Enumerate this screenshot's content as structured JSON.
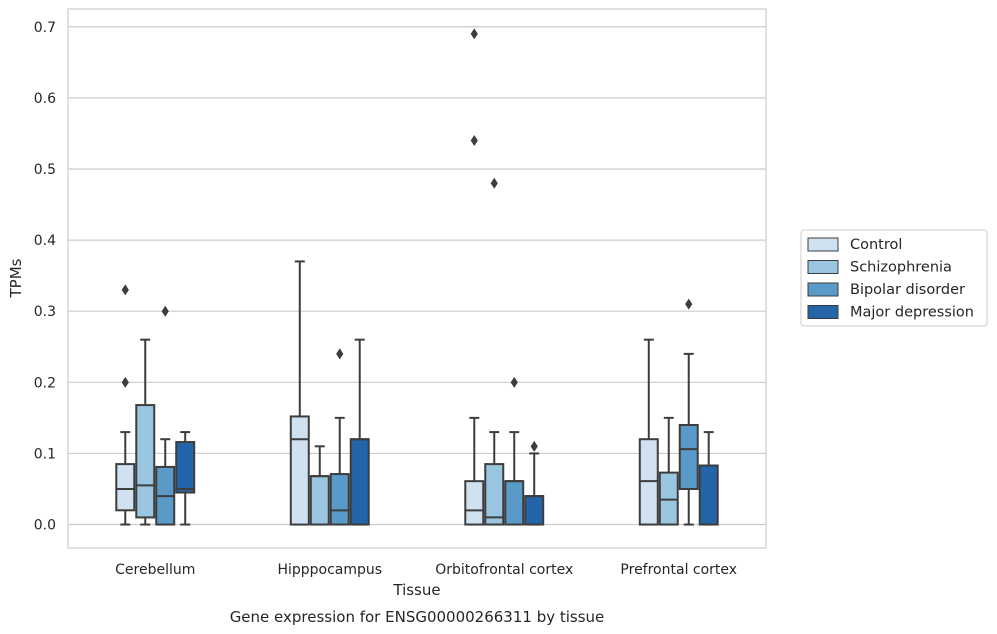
{
  "chart_data": {
    "type": "box",
    "title": "",
    "caption": "Gene expression for ENSG00000266311 by tissue",
    "xlabel": "Tissue",
    "ylabel": "TPMs",
    "ylim": [
      -0.033,
      0.725
    ],
    "yticks": [
      0.0,
      0.1,
      0.2,
      0.3,
      0.4,
      0.5,
      0.6,
      0.7
    ],
    "ytick_labels": [
      "0.0",
      "0.1",
      "0.2",
      "0.3",
      "0.4",
      "0.5",
      "0.6",
      "0.7"
    ],
    "grid": "horizontal",
    "legend_position": "right",
    "categories": [
      "Cerebellum",
      "Hipppocampus",
      "Orbitofrontal cortex",
      "Prefrontal cortex"
    ],
    "series": [
      {
        "name": "Control",
        "color": "#d0e1f2",
        "boxes": [
          {
            "whislo": 0.0,
            "q1": 0.02,
            "med": 0.05,
            "q3": 0.085,
            "whishi": 0.13,
            "fliers": [
              0.2,
              0.33
            ]
          },
          {
            "whislo": 0.0,
            "q1": 0.0,
            "med": 0.12,
            "q3": 0.152,
            "whishi": 0.37,
            "fliers": []
          },
          {
            "whislo": 0.0,
            "q1": 0.0,
            "med": 0.02,
            "q3": 0.061,
            "whishi": 0.15,
            "fliers": [
              0.54,
              0.69
            ]
          },
          {
            "whislo": 0.0,
            "q1": 0.0,
            "med": 0.061,
            "q3": 0.12,
            "whishi": 0.26,
            "fliers": []
          }
        ]
      },
      {
        "name": "Schizophrenia",
        "color": "#9ac5e0",
        "boxes": [
          {
            "whislo": 0.0,
            "q1": 0.01,
            "med": 0.055,
            "q3": 0.168,
            "whishi": 0.26,
            "fliers": []
          },
          {
            "whislo": 0.0,
            "q1": 0.0,
            "med": 0.068,
            "q3": 0.068,
            "whishi": 0.11,
            "fliers": []
          },
          {
            "whislo": 0.0,
            "q1": 0.0,
            "med": 0.01,
            "q3": 0.085,
            "whishi": 0.13,
            "fliers": [
              0.48
            ]
          },
          {
            "whislo": 0.0,
            "q1": 0.0,
            "med": 0.035,
            "q3": 0.073,
            "whishi": 0.15,
            "fliers": []
          }
        ]
      },
      {
        "name": "Bipolar disorder",
        "color": "#5a9ac8",
        "boxes": [
          {
            "whislo": 0.0,
            "q1": 0.0,
            "med": 0.04,
            "q3": 0.081,
            "whishi": 0.12,
            "fliers": [
              0.3
            ]
          },
          {
            "whislo": 0.0,
            "q1": 0.0,
            "med": 0.02,
            "q3": 0.071,
            "whishi": 0.15,
            "fliers": [
              0.24
            ]
          },
          {
            "whislo": 0.0,
            "q1": 0.0,
            "med": 0.061,
            "q3": 0.061,
            "whishi": 0.13,
            "fliers": [
              0.2
            ]
          },
          {
            "whislo": 0.0,
            "q1": 0.05,
            "med": 0.106,
            "q3": 0.14,
            "whishi": 0.24,
            "fliers": [
              0.31
            ]
          }
        ]
      },
      {
        "name": "Major depression",
        "color": "#2464a8",
        "boxes": [
          {
            "whislo": 0.0,
            "q1": 0.045,
            "med": 0.05,
            "q3": 0.116,
            "whishi": 0.13,
            "fliers": []
          },
          {
            "whislo": 0.0,
            "q1": 0.0,
            "med": 0.12,
            "q3": 0.12,
            "whishi": 0.26,
            "fliers": []
          },
          {
            "whislo": 0.0,
            "q1": 0.0,
            "med": 0.04,
            "q3": 0.04,
            "whishi": 0.1,
            "fliers": [
              0.11
            ]
          },
          {
            "whislo": 0.0,
            "q1": 0.0,
            "med": 0.083,
            "q3": 0.083,
            "whishi": 0.13,
            "fliers": []
          }
        ]
      }
    ]
  }
}
